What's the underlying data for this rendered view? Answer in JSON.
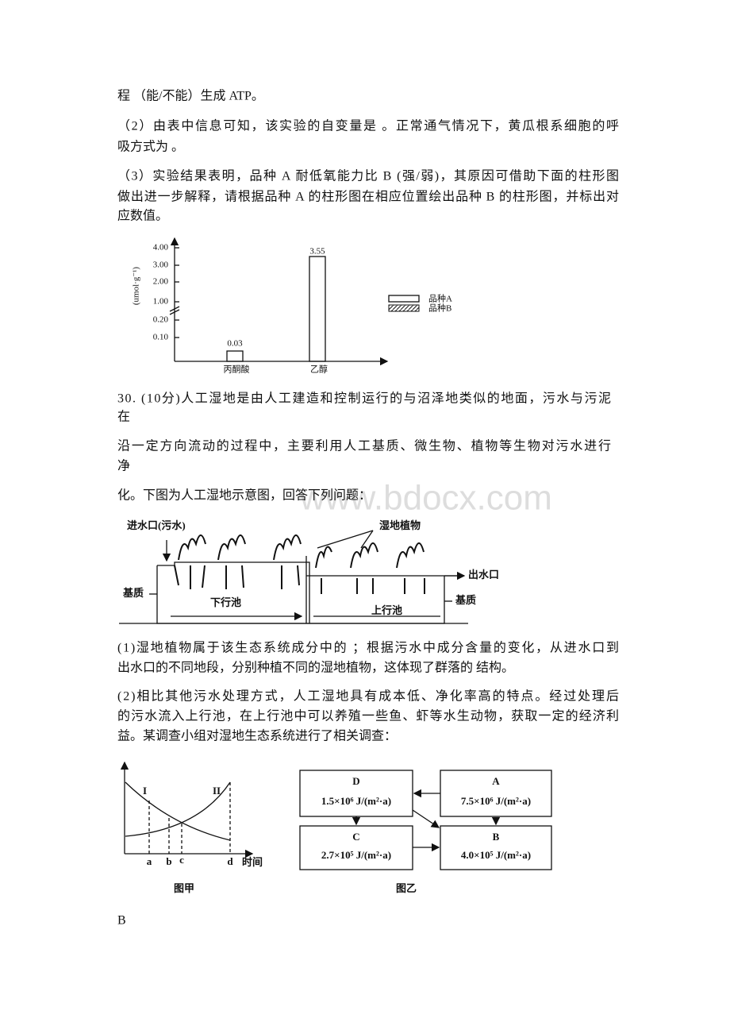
{
  "paragraphs": [
    {
      "lines": [
        "程 （能/不能）生成 ATP。"
      ]
    },
    {
      "lines": [
        "（2）由表中信息可知，该实验的自变量是 。正常通气情况下，黄瓜根系细胞的呼",
        "吸方式为 。"
      ]
    },
    {
      "lines": [
        "（3）实验结果表明，品种 A 耐低氧能力比 B (强/弱)，其原因可借助下面的柱形图",
        "做出进一步解释，请根据品种 A 的柱形图在相应位置绘出品种 B 的柱形图，并标出对",
        "应数值。"
      ]
    },
    {
      "lines": [
        "30. (10分)人工湿地是由人工建造和控制运行的与沼泽地类似的地面，污水与污泥",
        "在"
      ]
    },
    {
      "lines": [
        "沿一定方向流动的过程中，主要利用人工基质、微生物、植物等生物对污水进行",
        "净"
      ]
    },
    {
      "lines": [
        "化。下图为人工湿地示意图，回答下列问题："
      ]
    },
    {
      "lines": [
        "(1)湿地植物属于该生态系统成分中的 ；根据污水中成分含量的变化，从进水口到",
        "出水口的不同地段，分别种植不同的湿地植物，这体现了群落的 结构。"
      ]
    },
    {
      "lines": [
        "(2)相比其他污水处理方式，人工湿地具有成本低、净化率高的特点。经过处理后",
        "的污水流入上行池，在上行池中可以养殖一些鱼、虾等水生动物，获取一定的经济利",
        "益。某调查小组对湿地生态系统进行了相关调查："
      ]
    },
    {
      "lines": [
        "B"
      ]
    }
  ],
  "bar_figure": {
    "y_label": "(umol·g⁻¹)",
    "ticks": [
      "4.00",
      "3.00",
      "2.00",
      "1.00",
      "0.20",
      "0.10"
    ],
    "categories": [
      "丙酮酸",
      "乙醇"
    ],
    "bar_labels": [
      "0.03",
      "3.55"
    ],
    "legend": [
      "品种A",
      "品种B"
    ]
  },
  "wetland_figure": {
    "labels": [
      "进水口(污水)",
      "湿地植物",
      "出水口",
      "基质",
      "下行池",
      "上行池",
      "基质"
    ]
  },
  "figure_jia": {
    "curve_labels": [
      "I",
      "II"
    ],
    "x_labels": [
      "a",
      "b",
      "c",
      "d"
    ],
    "x_axis_label": "时间",
    "caption": "图甲"
  },
  "figure_yi": {
    "boxes": [
      {
        "label": "D",
        "value": "1.5×10⁶ J/(m²·a)"
      },
      {
        "label": "A",
        "value": "7.5×10⁶ J/(m²·a)"
      },
      {
        "label": "C",
        "value": "2.7×10⁵ J/(m²·a)"
      },
      {
        "label": "B",
        "value": "4.0×10⁵ J/(m²·a)"
      }
    ],
    "caption": "图乙"
  },
  "watermark": "www.bdocx.com"
}
